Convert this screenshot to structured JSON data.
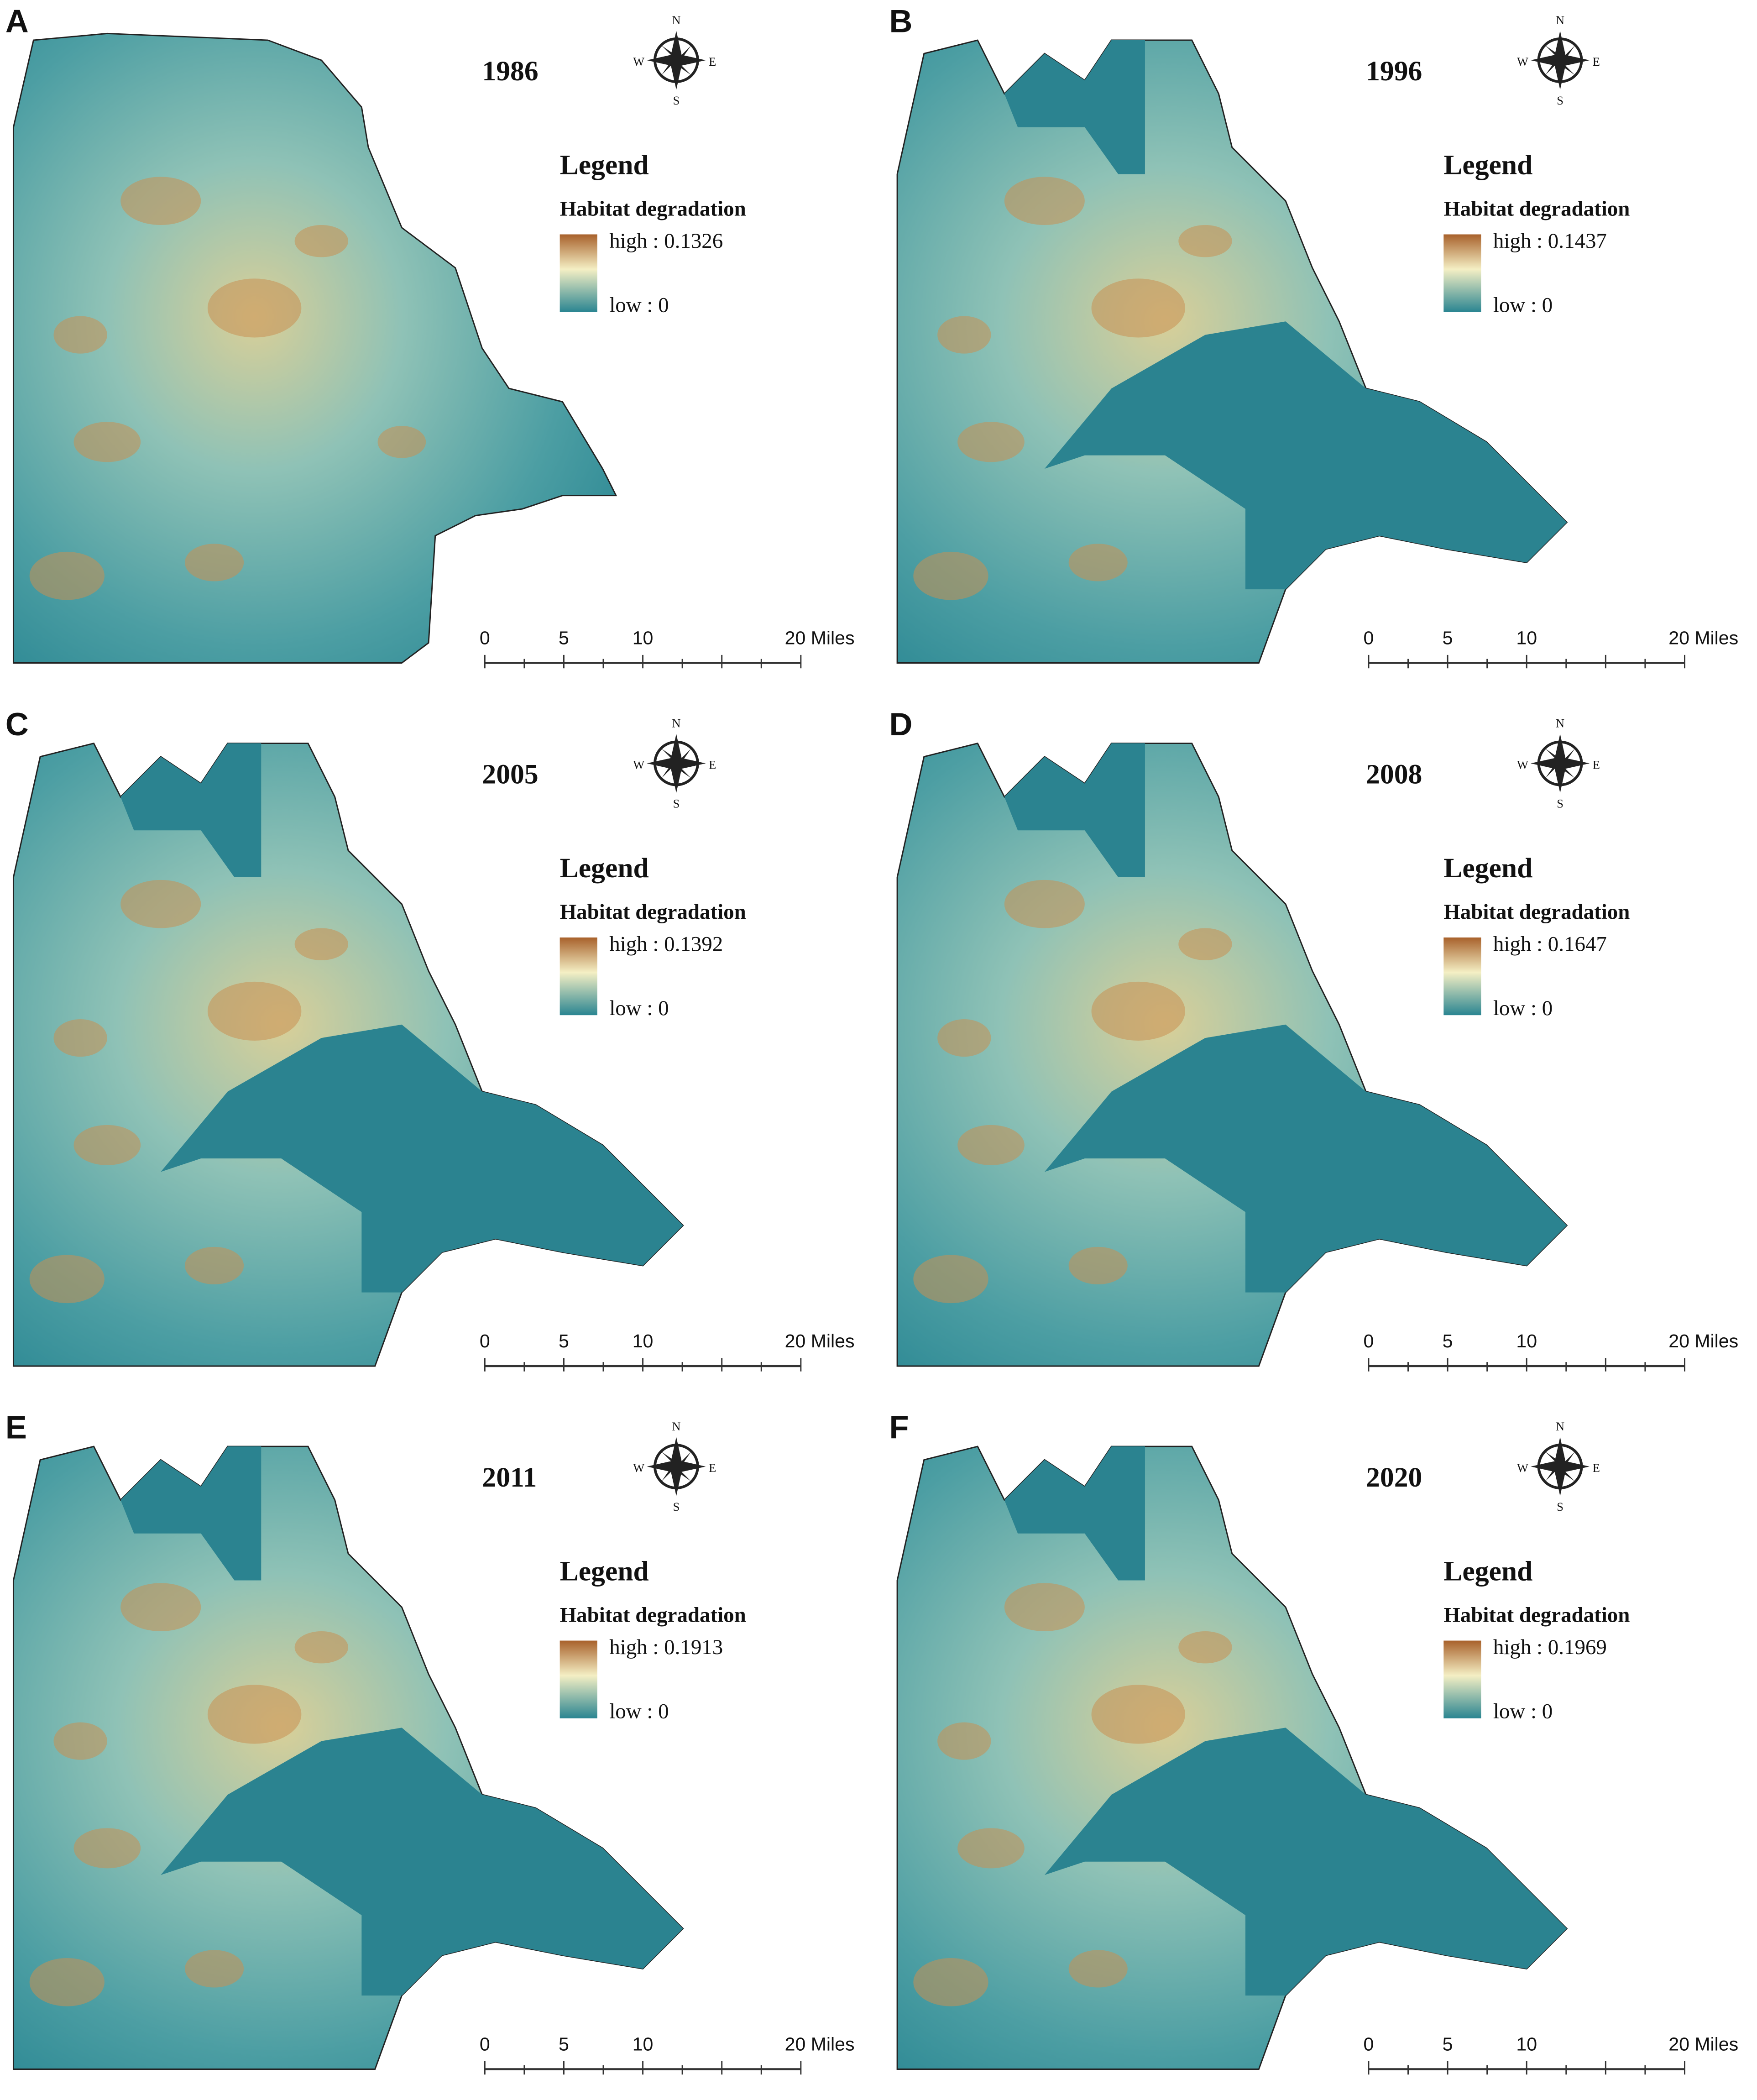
{
  "panels": [
    {
      "label": "A",
      "year": "1986",
      "legend_title": "Legend",
      "legend_subtitle": "Habitat degradation",
      "high_label": "high : 0.1326",
      "low_label": "low : 0",
      "scale_labels": [
        "0",
        "5",
        "10",
        "20 Miles"
      ],
      "compass": [
        "N",
        "S",
        "E",
        "W"
      ]
    },
    {
      "label": "B",
      "year": "1996",
      "legend_title": "Legend",
      "legend_subtitle": "Habitat degradation",
      "high_label": "high : 0.1437",
      "low_label": "low : 0",
      "scale_labels": [
        "0",
        "5",
        "10",
        "20 Miles"
      ],
      "compass": [
        "N",
        "S",
        "E",
        "W"
      ]
    },
    {
      "label": "C",
      "year": "2005",
      "legend_title": "Legend",
      "legend_subtitle": "Habitat degradation",
      "high_label": "high : 0.1392",
      "low_label": "low : 0",
      "scale_labels": [
        "0",
        "5",
        "10",
        "20 Miles"
      ],
      "compass": [
        "N",
        "S",
        "E",
        "W"
      ]
    },
    {
      "label": "D",
      "year": "2008",
      "legend_title": "Legend",
      "legend_subtitle": "Habitat degradation",
      "high_label": "high : 0.1647",
      "low_label": "low : 0",
      "scale_labels": [
        "0",
        "5",
        "10",
        "20 Miles"
      ],
      "compass": [
        "N",
        "S",
        "E",
        "W"
      ]
    },
    {
      "label": "E",
      "year": "2011",
      "legend_title": "Legend",
      "legend_subtitle": "Habitat degradation",
      "high_label": "high : 0.1913",
      "low_label": "low : 0",
      "scale_labels": [
        "0",
        "5",
        "10",
        "20 Miles"
      ],
      "compass": [
        "N",
        "S",
        "E",
        "W"
      ]
    },
    {
      "label": "F",
      "year": "2020",
      "legend_title": "Legend",
      "legend_subtitle": "Habitat degradation",
      "high_label": "high : 0.1969",
      "low_label": "low : 0",
      "scale_labels": [
        "0",
        "5",
        "10",
        "20 Miles"
      ],
      "compass": [
        "N",
        "S",
        "E",
        "W"
      ]
    }
  ]
}
